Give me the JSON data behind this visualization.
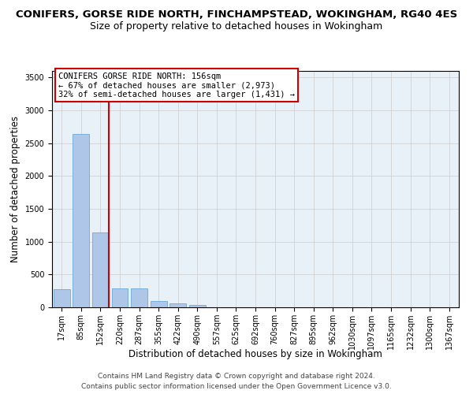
{
  "title_line1": "CONIFERS, GORSE RIDE NORTH, FINCHAMPSTEAD, WOKINGHAM, RG40 4ES",
  "title_line2": "Size of property relative to detached houses in Wokingham",
  "xlabel": "Distribution of detached houses by size in Wokingham",
  "ylabel": "Number of detached properties",
  "bar_color": "#aec6e8",
  "bar_edge_color": "#5a9fd4",
  "categories": [
    "17sqm",
    "85sqm",
    "152sqm",
    "220sqm",
    "287sqm",
    "355sqm",
    "422sqm",
    "490sqm",
    "557sqm",
    "625sqm",
    "692sqm",
    "760sqm",
    "827sqm",
    "895sqm",
    "962sqm",
    "1030sqm",
    "1097sqm",
    "1165sqm",
    "1232sqm",
    "1300sqm",
    "1367sqm"
  ],
  "values": [
    280,
    2640,
    1140,
    285,
    285,
    95,
    55,
    35,
    0,
    0,
    0,
    0,
    0,
    0,
    0,
    0,
    0,
    0,
    0,
    0,
    0
  ],
  "highlight_index": 2,
  "highlight_line_color": "#cc0000",
  "ylim": [
    0,
    3600
  ],
  "yticks": [
    0,
    500,
    1000,
    1500,
    2000,
    2500,
    3000,
    3500
  ],
  "annotation_text": "CONIFERS GORSE RIDE NORTH: 156sqm\n← 67% of detached houses are smaller (2,973)\n32% of semi-detached houses are larger (1,431) →",
  "annotation_box_color": "#ffffff",
  "annotation_box_edge_color": "#cc0000",
  "footer_line1": "Contains HM Land Registry data © Crown copyright and database right 2024.",
  "footer_line2": "Contains public sector information licensed under the Open Government Licence v3.0.",
  "background_color": "#ffffff",
  "plot_bg_color": "#e8f0f8",
  "grid_color": "#cccccc",
  "title_fontsize": 9.5,
  "subtitle_fontsize": 9,
  "axis_label_fontsize": 8.5,
  "tick_fontsize": 7,
  "annotation_fontsize": 7.5,
  "footer_fontsize": 6.5
}
